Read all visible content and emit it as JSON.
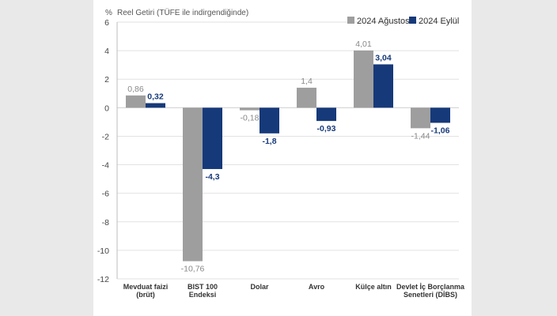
{
  "chart_data": {
    "type": "bar",
    "title": "",
    "ylabel_unit": "%",
    "ylabel": "Reel Getiri (TÜFE ile indirgendiğinde)",
    "ylim": [
      -12,
      6
    ],
    "yticks": [
      6,
      4,
      2,
      0,
      -2,
      -4,
      -6,
      -8,
      -10,
      -12
    ],
    "ytick_labels": [
      "6",
      "4",
      "2",
      "0",
      "-2",
      "-4",
      "-6",
      "-8",
      "-10",
      "-12"
    ],
    "grid": true,
    "legend_position": "top-right",
    "categories": [
      [
        "Mevduat faizi",
        "(brüt)"
      ],
      [
        "BIST 100",
        "Endeksi"
      ],
      [
        "Dolar"
      ],
      [
        "Avro"
      ],
      [
        "Külçe altın"
      ],
      [
        "Devlet İç Borçlanma",
        "Senetleri (DİBS)"
      ]
    ],
    "series": [
      {
        "name": "2024 Ağustos",
        "color": "#9e9e9e",
        "values": [
          0.86,
          -10.76,
          -0.18,
          1.4,
          4.01,
          -1.44
        ],
        "labels": [
          "0,86",
          "-10,76",
          "-0,18",
          "1,4",
          "4,01",
          "-1,44"
        ]
      },
      {
        "name": "2024 Eylül",
        "color": "#16397a",
        "values": [
          0.32,
          -4.3,
          -1.8,
          -0.93,
          3.04,
          -1.06
        ],
        "labels": [
          "0,32",
          "-4,3",
          "-1,8",
          "-0,93",
          "3,04",
          "-1,06"
        ]
      }
    ]
  }
}
